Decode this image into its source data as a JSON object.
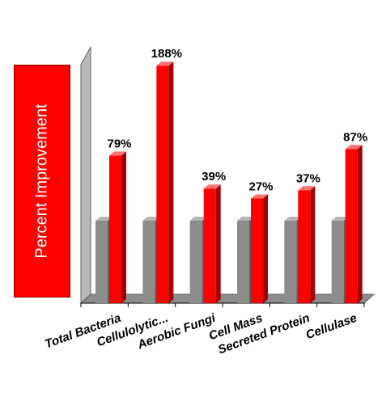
{
  "chart_data": {
    "type": "bar",
    "ylabel": "Percent Improvement",
    "categories": [
      "Total Bacteria",
      "Cellulolytic...",
      "Aerobic Fungi",
      "Cell Mass",
      "Secreted Protein",
      "Cellulase"
    ],
    "series": [
      {
        "values": [
          100,
          100,
          100,
          100,
          100,
          100
        ],
        "color": "#8c8c8c"
      },
      {
        "values": [
          179,
          288,
          139,
          127,
          137,
          187
        ],
        "color": "#ff0000"
      }
    ],
    "value_labels": [
      "79%",
      "188%",
      "39%",
      "27%",
      "37%",
      "87%"
    ],
    "ylim": [
      0,
      300
    ],
    "grid": false,
    "legend": "none"
  }
}
